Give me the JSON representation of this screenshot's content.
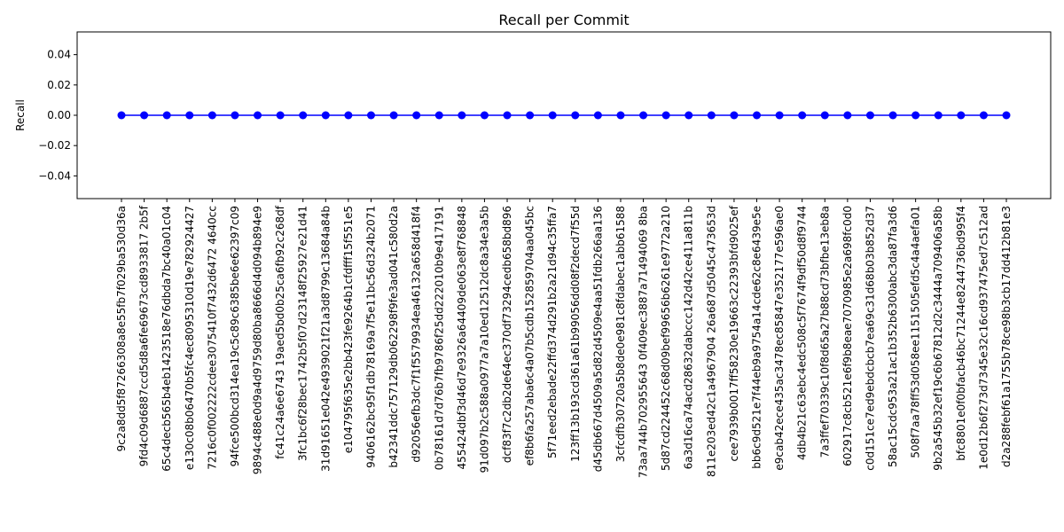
{
  "chart_data": {
    "type": "line",
    "title": "Recall per Commit",
    "xlabel": "",
    "ylabel": "Recall",
    "ylim": [
      -0.055,
      0.055
    ],
    "yticks": [
      -0.04,
      -0.02,
      0.0,
      0.02,
      0.04
    ],
    "ytick_labels": [
      "−0.04",
      "−0.02",
      "0.00",
      "0.02",
      "0.04"
    ],
    "grid": false,
    "legend": "none",
    "colors": {
      "line": "#0000ff",
      "marker": "#0000ff"
    },
    "categories": [
      "9c2a8dd5f87266308a8e55fb7f029ba530d36a",
      "9fd4c09d6887ccd5d8a6fe69673cd8933817 2b5f",
      "65c4decb565b4eb1423518e76dbda7bc40a01c04",
      "e130c08b06470b5fc4ec8095310d19e782924427",
      "7216c0f002222cdee3075410f7432d6472 4640cc",
      "94fce500bcd314ea19c5c89c6385be6e62397c09",
      "9894c488e0d9a4d9759d80ba8666d4d094b894e9",
      "fc41c24a6e6743 19aed5bd0b25ca6fb92c268df",
      "3fc1bc6f28bec1742b5f07d23148f25927e21d41",
      "31d91651e042e4939021f21a3d8799c13684a84b",
      "e104795f635e2bb423fe9264b1cfdfff15f551e5",
      "9406162bc95f1db78169a7f5e11bc56d324b2071",
      "b42341ddc757129db062298f9fe3ad041c580d2a",
      "d92056efb3dc7f1f5579934ea46132a658d418f4",
      "0b78161d7d76b7fb9786f25dd222010b9e417191",
      "455424dbf3d46d7e9326a64409de063e8f768848",
      "91d097b2c588a0977a7a10ed12512dc8a34e3a5b",
      "dcf83f7c2db2de64ec370df73294cedb658bd896",
      "ef8b6fa257aba6c4a07b5cdb152859704aa045bc",
      "5f71eed2ebade22ffd374d291b2a21d94c35ffa7",
      "123ff13b193cd361a61b99056dd08f2decd7f55d",
      "d45db667d4509a5d82d4509e4aa51fdb266aa136",
      "3cfcdfb30720a5b8de0e981c8fdabec1abb61588",
      "73aa744b702955643 0f409ec3887a71494069 8ba",
      "5d87cd224452c68d09bef99656b6261e9772a210",
      "6a3d16ca74acd28632dabccc142d42ce411a811b",
      "811e203ed42c1a4967904 26a687d5045c473653d",
      "cee7939b0017ff58230e19663c22393bfd9025ef",
      "bb6c9d521e7f44eb9a9754a14cde62c8e6439e5e",
      "e9cab42ece435ac3478ec85847e352177e596ae0",
      "4db4b21c63ebc4edc508c5f7674f9df50d8f9744",
      "7a3ffef70339c10f8d65a27b88cd73bfbe13eb8a",
      "602917c8cb521e6f9b8eae7070985e2a698fc0d0",
      "c0d151ce7ed9ebdcbcb7ea69c31d68b03b852d37",
      "58ac15cdc953a21ac1b352b6300abc3da87fa3d6",
      "508f7aa78ff53d058ee1151505efd5c4a4aefa01",
      "9b2a545b32ef19c6b67812d2c3444a709406a58b",
      "bfc8801e0f0bfacb46bc71244e8244736bd995f4",
      "1e0d12b6f273d7345e32c16cd937475ed7c512ad",
      "d2a288febf61a1755b78ce98b3cb17dd412b81e3"
    ],
    "values": [
      0,
      0,
      0,
      0,
      0,
      0,
      0,
      0,
      0,
      0,
      0,
      0,
      0,
      0,
      0,
      0,
      0,
      0,
      0,
      0,
      0,
      0,
      0,
      0,
      0,
      0,
      0,
      0,
      0,
      0,
      0,
      0,
      0,
      0,
      0,
      0,
      0,
      0,
      0,
      0
    ]
  }
}
